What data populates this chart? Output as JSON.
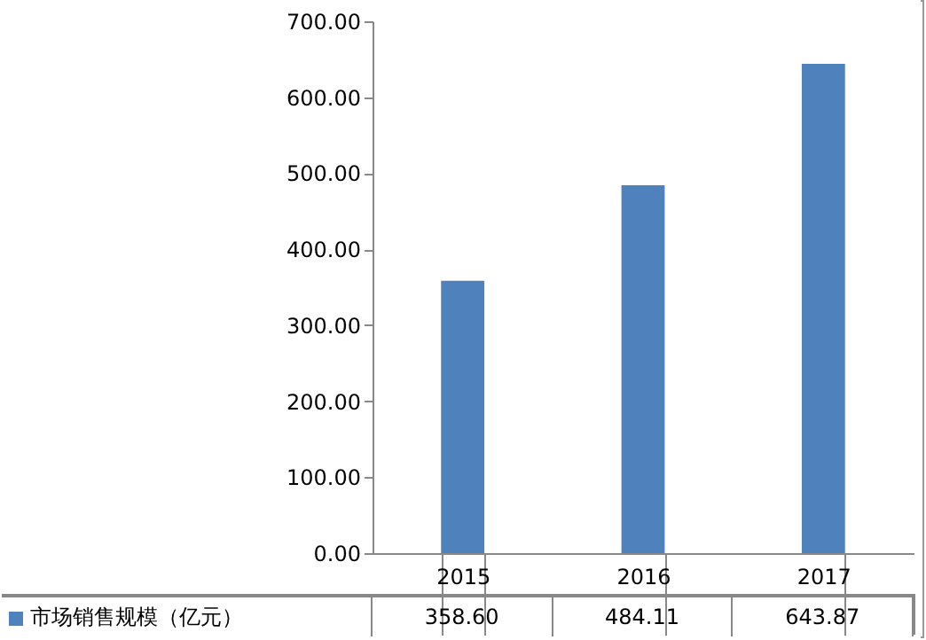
{
  "chart_data": {
    "type": "bar",
    "categories": [
      "2015",
      "2016",
      "2017"
    ],
    "series": [
      {
        "name": "市场销售规模（亿元）",
        "color": "#4f81bd",
        "values": [
          358.6,
          484.11,
          643.87
        ],
        "value_labels": [
          "358.60",
          "484.11",
          "643.87"
        ]
      }
    ],
    "ylim": [
      0,
      700
    ],
    "yticks": [
      {
        "value": 0,
        "label": "0.00"
      },
      {
        "value": 100,
        "label": "100.00"
      },
      {
        "value": 200,
        "label": "200.00"
      },
      {
        "value": 300,
        "label": "300.00"
      },
      {
        "value": 400,
        "label": "400.00"
      },
      {
        "value": 500,
        "label": "500.00"
      },
      {
        "value": 600,
        "label": "600.00"
      },
      {
        "value": 700,
        "label": "700.00"
      }
    ],
    "legend": "bottom",
    "grid": false
  }
}
